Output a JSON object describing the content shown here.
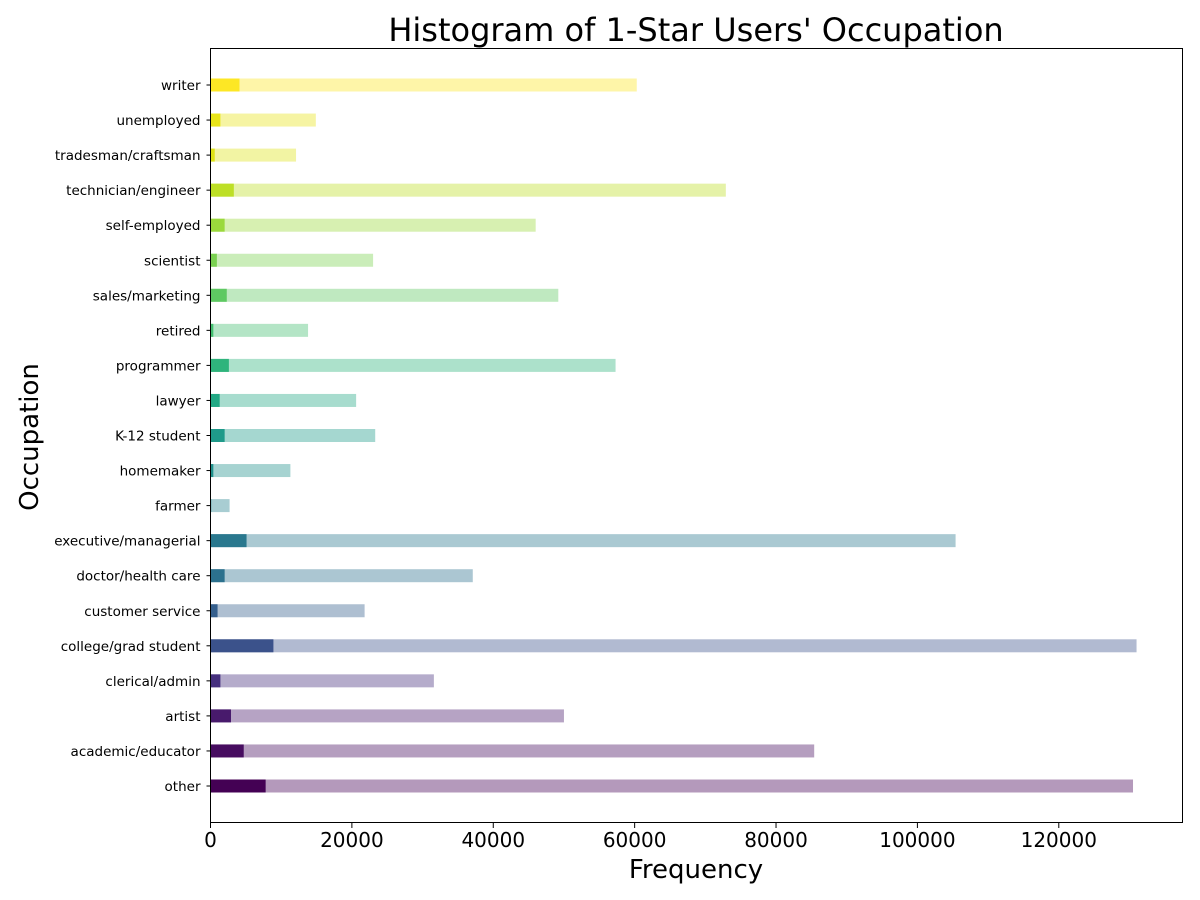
{
  "chart_data": {
    "type": "bar",
    "orientation": "horizontal",
    "stacked": true,
    "title": "Histogram of 1-Star Users' Occupation",
    "xlabel": "Frequency",
    "ylabel": "Occupation",
    "xlim": [
      0,
      137500
    ],
    "xticks": [
      "0",
      "20000",
      "40000",
      "60000",
      "80000",
      "100000",
      "120000"
    ],
    "grid": false,
    "categories": [
      {
        "label": "other",
        "one_star": 7800,
        "total": 130500,
        "color": "#440154"
      },
      {
        "label": "academic/educator",
        "one_star": 4700,
        "total": 85400,
        "color": "#470d60"
      },
      {
        "label": "artist",
        "one_star": 2900,
        "total": 50000,
        "color": "#481a6c"
      },
      {
        "label": "clerical/admin",
        "one_star": 1400,
        "total": 31600,
        "color": "#46307e"
      },
      {
        "label": "college/grad student",
        "one_star": 8900,
        "total": 131000,
        "color": "#3b528b"
      },
      {
        "label": "customer service",
        "one_star": 1000,
        "total": 21800,
        "color": "#355f8d"
      },
      {
        "label": "doctor/health care",
        "one_star": 2000,
        "total": 37100,
        "color": "#2c718e"
      },
      {
        "label": "executive/managerial",
        "one_star": 5100,
        "total": 105400,
        "color": "#2a788e"
      },
      {
        "label": "farmer",
        "one_star": 100,
        "total": 2700,
        "color": "#26828e"
      },
      {
        "label": "homemaker",
        "one_star": 400,
        "total": 11300,
        "color": "#21918c"
      },
      {
        "label": "K-12 student",
        "one_star": 2000,
        "total": 23300,
        "color": "#1f9a8a"
      },
      {
        "label": "lawyer",
        "one_star": 1300,
        "total": 20600,
        "color": "#22a884"
      },
      {
        "label": "programmer",
        "one_star": 2600,
        "total": 57300,
        "color": "#2fb47c"
      },
      {
        "label": "retired",
        "one_star": 400,
        "total": 13800,
        "color": "#44bf70"
      },
      {
        "label": "sales/marketing",
        "one_star": 2300,
        "total": 49200,
        "color": "#5ec962"
      },
      {
        "label": "scientist",
        "one_star": 900,
        "total": 23000,
        "color": "#7ad151"
      },
      {
        "label": "self-employed",
        "one_star": 2000,
        "total": 46000,
        "color": "#9bd93c"
      },
      {
        "label": "technician/engineer",
        "one_star": 3300,
        "total": 72900,
        "color": "#bddf26"
      },
      {
        "label": "tradesman/craftsman",
        "one_star": 600,
        "total": 12100,
        "color": "#dfe318"
      },
      {
        "label": "unemployed",
        "one_star": 1400,
        "total": 14900,
        "color": "#e8e419"
      },
      {
        "label": "writer",
        "one_star": 4100,
        "total": 60300,
        "color": "#fde725"
      }
    ]
  }
}
